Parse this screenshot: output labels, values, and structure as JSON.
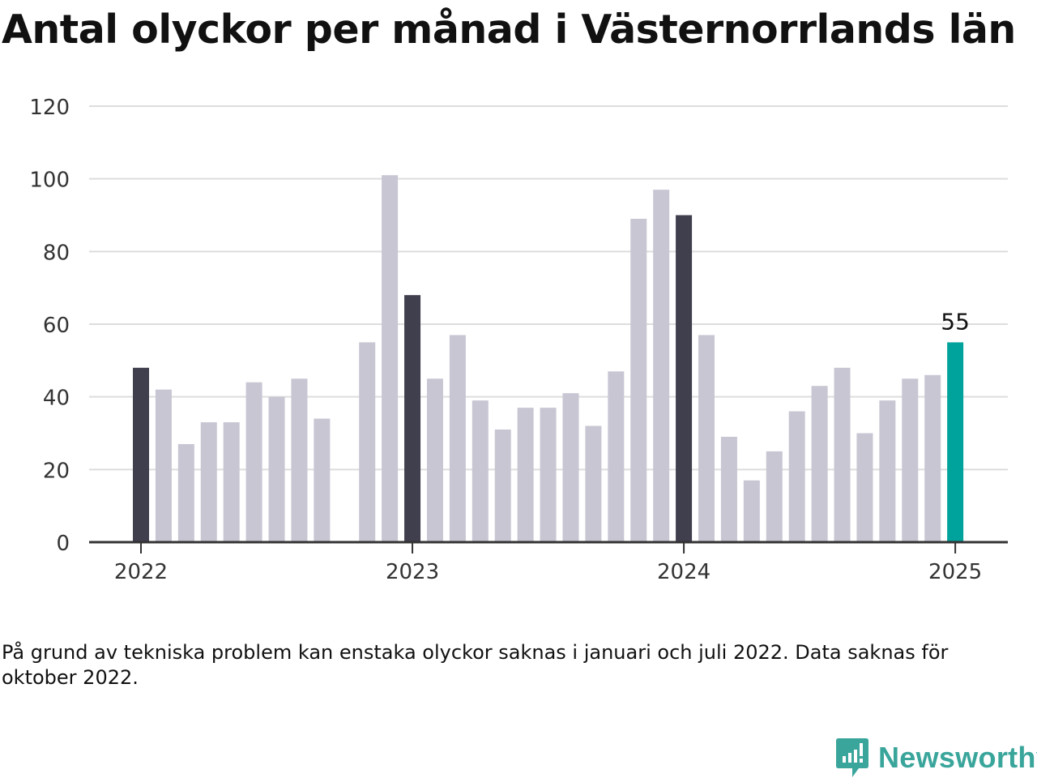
{
  "title": "Antal olyckor per månad i Västernorrlands län",
  "note": "På grund av tekniska problem kan enstaka olyckor saknas i januari och juli 2022. Data saknas för oktober 2022.",
  "brand": {
    "name": "Newsworthy",
    "icon": "newsworthy-logo-icon",
    "color": "#3aa59b"
  },
  "colors": {
    "default": "#c8c6d3",
    "january": "#403f4e",
    "latest": "#00a39b",
    "grid": "#dddddd",
    "axis": "#333333"
  },
  "chart_data": {
    "type": "bar",
    "ylim": [
      0,
      120
    ],
    "yticks": [
      0,
      20,
      40,
      60,
      80,
      100,
      120
    ],
    "xticks": [
      "2022",
      "2023",
      "2024",
      "2025"
    ],
    "grid": true,
    "highlight_label": "55",
    "categories": [
      "2022-01",
      "2022-02",
      "2022-03",
      "2022-04",
      "2022-05",
      "2022-06",
      "2022-07",
      "2022-08",
      "2022-09",
      "2022-10",
      "2022-11",
      "2022-12",
      "2023-01",
      "2023-02",
      "2023-03",
      "2023-04",
      "2023-05",
      "2023-06",
      "2023-07",
      "2023-08",
      "2023-09",
      "2023-10",
      "2023-11",
      "2023-12",
      "2024-01",
      "2024-02",
      "2024-03",
      "2024-04",
      "2024-05",
      "2024-06",
      "2024-07",
      "2024-08",
      "2024-09",
      "2024-10",
      "2024-11",
      "2024-12",
      "2025-01"
    ],
    "values": [
      48,
      42,
      27,
      33,
      33,
      44,
      40,
      45,
      34,
      null,
      55,
      101,
      68,
      45,
      57,
      39,
      31,
      37,
      37,
      41,
      32,
      47,
      89,
      97,
      90,
      57,
      29,
      17,
      25,
      36,
      43,
      48,
      30,
      39,
      45,
      46,
      55
    ]
  }
}
